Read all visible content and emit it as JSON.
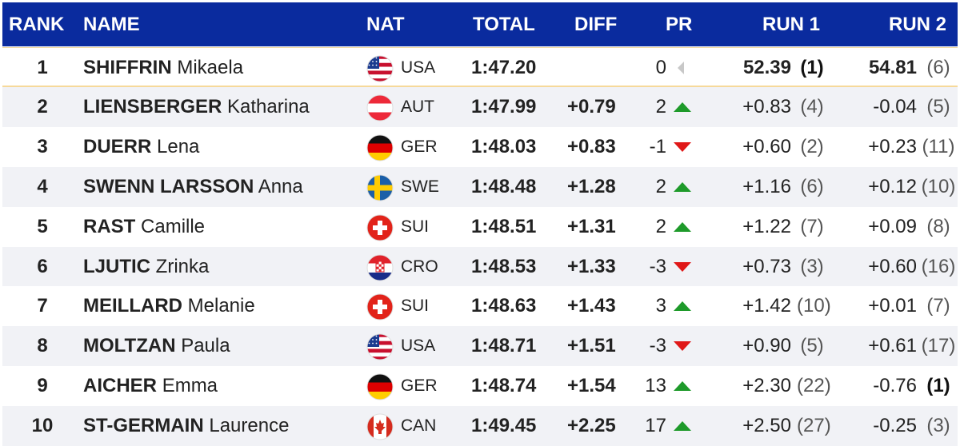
{
  "headers": {
    "rank": "RANK",
    "name": "NAME",
    "nat": "NAT",
    "total": "TOTAL",
    "diff": "DIFF",
    "pr": "PR",
    "run1": "RUN 1",
    "run2": "RUN 2"
  },
  "colors": {
    "header_bg": "#0a2b9e",
    "arrow_up": "#1e9a2a",
    "arrow_down": "#e01818",
    "arrow_neutral": "#c8c8c8"
  },
  "rows": [
    {
      "rank": "1",
      "surname": "SHIFFRIN",
      "first": "Mikaela",
      "nat": "USA",
      "flag": "usa-flag-icon",
      "total": "1:47.20",
      "diff": "",
      "pr": "0",
      "pr_dir": "neutral",
      "run1": "52.39",
      "run1_rank": "(1)",
      "run2": "54.81",
      "run2_rank": "(6)"
    },
    {
      "rank": "2",
      "surname": "LIENSBERGER",
      "first": "Katharina",
      "nat": "AUT",
      "flag": "austria-flag-icon",
      "total": "1:47.99",
      "diff": "+0.79",
      "pr": "2",
      "pr_dir": "up",
      "run1": "+0.83",
      "run1_rank": "(4)",
      "run2": "-0.04",
      "run2_rank": "(5)"
    },
    {
      "rank": "3",
      "surname": "DUERR",
      "first": "Lena",
      "nat": "GER",
      "flag": "germany-flag-icon",
      "total": "1:48.03",
      "diff": "+0.83",
      "pr": "-1",
      "pr_dir": "down",
      "run1": "+0.60",
      "run1_rank": "(2)",
      "run2": "+0.23",
      "run2_rank": "(11)"
    },
    {
      "rank": "4",
      "surname": "SWENN LARSSON",
      "first": "Anna",
      "nat": "SWE",
      "flag": "sweden-flag-icon",
      "total": "1:48.48",
      "diff": "+1.28",
      "pr": "2",
      "pr_dir": "up",
      "run1": "+1.16",
      "run1_rank": "(6)",
      "run2": "+0.12",
      "run2_rank": "(10)"
    },
    {
      "rank": "5",
      "surname": "RAST",
      "first": "Camille",
      "nat": "SUI",
      "flag": "switzerland-flag-icon",
      "total": "1:48.51",
      "diff": "+1.31",
      "pr": "2",
      "pr_dir": "up",
      "run1": "+1.22",
      "run1_rank": "(7)",
      "run2": "+0.09",
      "run2_rank": "(8)"
    },
    {
      "rank": "6",
      "surname": "LJUTIC",
      "first": "Zrinka",
      "nat": "CRO",
      "flag": "croatia-flag-icon",
      "total": "1:48.53",
      "diff": "+1.33",
      "pr": "-3",
      "pr_dir": "down",
      "run1": "+0.73",
      "run1_rank": "(3)",
      "run2": "+0.60",
      "run2_rank": "(16)"
    },
    {
      "rank": "7",
      "surname": "MEILLARD",
      "first": "Melanie",
      "nat": "SUI",
      "flag": "switzerland-flag-icon",
      "total": "1:48.63",
      "diff": "+1.43",
      "pr": "3",
      "pr_dir": "up",
      "run1": "+1.42",
      "run1_rank": "(10)",
      "run2": "+0.01",
      "run2_rank": "(7)"
    },
    {
      "rank": "8",
      "surname": "MOLTZAN",
      "first": "Paula",
      "nat": "USA",
      "flag": "usa-flag-icon",
      "total": "1:48.71",
      "diff": "+1.51",
      "pr": "-3",
      "pr_dir": "down",
      "run1": "+0.90",
      "run1_rank": "(5)",
      "run2": "+0.61",
      "run2_rank": "(17)"
    },
    {
      "rank": "9",
      "surname": "AICHER",
      "first": "Emma",
      "nat": "GER",
      "flag": "germany-flag-icon",
      "total": "1:48.74",
      "diff": "+1.54",
      "pr": "13",
      "pr_dir": "up",
      "run1": "+2.30",
      "run1_rank": "(22)",
      "run2": "-0.76",
      "run2_rank": "(1)"
    },
    {
      "rank": "10",
      "surname": "ST-GERMAIN",
      "first": "Laurence",
      "nat": "CAN",
      "flag": "canada-flag-icon",
      "total": "1:49.45",
      "diff": "+2.25",
      "pr": "17",
      "pr_dir": "up",
      "run1": "+2.50",
      "run1_rank": "(27)",
      "run2": "-0.25",
      "run2_rank": "(3)"
    }
  ]
}
